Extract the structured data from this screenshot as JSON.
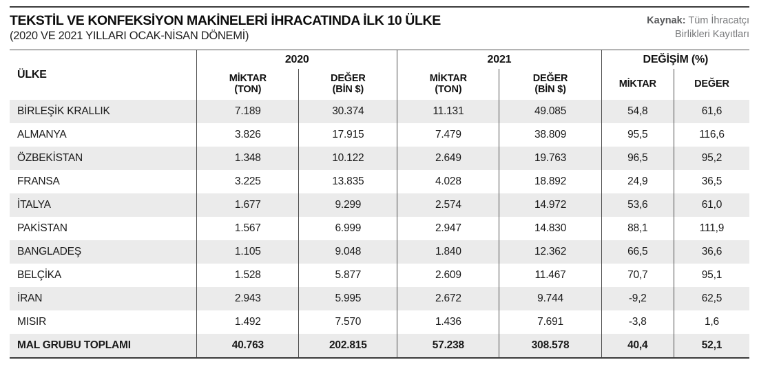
{
  "header": {
    "title": "TEKSTİL VE KONFEKSİYON MAKİNELERİ İHRACATINDA İLK 10 ÜLKE",
    "subtitle": "(2020 VE 2021 YILLARI OCAK-NİSAN DÖNEMİ)",
    "source_label": "Kaynak:",
    "source_line1": "Tüm İhracatçı",
    "source_line2": "Birlikleri Kayıtları"
  },
  "colors": {
    "stripe_gray": "#ebebeb",
    "border_dark": "#4b4b4b",
    "source_gray": "#77787a",
    "text": "#1a1a1a"
  },
  "table": {
    "country_header": "ÜLKE",
    "groups": [
      {
        "label": "2020",
        "cols": [
          {
            "l1": "MİKTAR",
            "l2": "(TON)"
          },
          {
            "l1": "DEĞER",
            "l2": "(BİN $)"
          }
        ]
      },
      {
        "label": "2021",
        "cols": [
          {
            "l1": "MİKTAR",
            "l2": "(TON)"
          },
          {
            "l1": "DEĞER",
            "l2": "(BİN $)"
          }
        ]
      },
      {
        "label": "DEĞİŞİM (%)",
        "cols": [
          {
            "l1": "MİKTAR"
          },
          {
            "l1": "DEĞER"
          }
        ]
      }
    ],
    "rows": [
      {
        "country": "BİRLEŞİK KRALLIK",
        "values": [
          "7.189",
          "30.374",
          "11.131",
          "49.085",
          "54,8",
          "61,6"
        ]
      },
      {
        "country": "ALMANYA",
        "values": [
          "3.826",
          "17.915",
          "7.479",
          "38.809",
          "95,5",
          "116,6"
        ]
      },
      {
        "country": "ÖZBEKİSTAN",
        "values": [
          "1.348",
          "10.122",
          "2.649",
          "19.763",
          "96,5",
          "95,2"
        ]
      },
      {
        "country": "FRANSA",
        "values": [
          "3.225",
          "13.835",
          "4.028",
          "18.892",
          "24,9",
          "36,5"
        ]
      },
      {
        "country": "İTALYA",
        "values": [
          "1.677",
          "9.299",
          "2.574",
          "14.972",
          "53,6",
          "61,0"
        ]
      },
      {
        "country": "PAKİSTAN",
        "values": [
          "1.567",
          "6.999",
          "2.947",
          "14.830",
          "88,1",
          "111,9"
        ]
      },
      {
        "country": "BANGLADEŞ",
        "values": [
          "1.105",
          "9.048",
          "1.840",
          "12.362",
          "66,5",
          "36,6"
        ]
      },
      {
        "country": "BELÇİKA",
        "values": [
          "1.528",
          "5.877",
          "2.609",
          "11.467",
          "70,7",
          "95,1"
        ]
      },
      {
        "country": "İRAN",
        "values": [
          "2.943",
          "5.995",
          "2.672",
          "9.744",
          "-9,2",
          "62,5"
        ]
      },
      {
        "country": "MISIR",
        "values": [
          "1.492",
          "7.570",
          "1.436",
          "7.691",
          "-3,8",
          "1,6"
        ]
      },
      {
        "country": "MAL GRUBU TOPLAMI",
        "values": [
          "40.763",
          "202.815",
          "57.238",
          "308.578",
          "40,4",
          "52,1"
        ]
      }
    ]
  },
  "chart_data": {
    "type": "table",
    "title": "TEKSTİL VE KONFEKSİYON MAKİNELERİ İHRACATINDA İLK 10 ÜLKE (2020 VE 2021 YILLARI OCAK-NİSAN DÖNEMİ)",
    "columns": [
      "ÜLKE",
      "2020 MİKTAR (TON)",
      "2020 DEĞER (BİN $)",
      "2021 MİKTAR (TON)",
      "2021 DEĞER (BİN $)",
      "DEĞİŞİM MİKTAR (%)",
      "DEĞİŞİM DEĞER (%)"
    ],
    "rows": [
      [
        "BİRLEŞİK KRALLIK",
        7189,
        30374,
        11131,
        49085,
        54.8,
        61.6
      ],
      [
        "ALMANYA",
        3826,
        17915,
        7479,
        38809,
        95.5,
        116.6
      ],
      [
        "ÖZBEKİSTAN",
        1348,
        10122,
        2649,
        19763,
        96.5,
        95.2
      ],
      [
        "FRANSA",
        3225,
        13835,
        4028,
        18892,
        24.9,
        36.5
      ],
      [
        "İTALYA",
        1677,
        9299,
        2574,
        14972,
        53.6,
        61.0
      ],
      [
        "PAKİSTAN",
        1567,
        6999,
        2947,
        14830,
        88.1,
        111.9
      ],
      [
        "BANGLADEŞ",
        1105,
        9048,
        1840,
        12362,
        66.5,
        36.6
      ],
      [
        "BELÇİKA",
        1528,
        5877,
        2609,
        11467,
        70.7,
        95.1
      ],
      [
        "İRAN",
        2943,
        5995,
        2672,
        9744,
        -9.2,
        62.5
      ],
      [
        "MISIR",
        1492,
        7570,
        1436,
        7691,
        -3.8,
        1.6
      ],
      [
        "MAL GRUBU TOPLAMI",
        40763,
        202815,
        57238,
        308578,
        40.4,
        52.1
      ]
    ],
    "source": "Kaynak: Tüm İhracatçı Birlikleri Kayıtları"
  }
}
